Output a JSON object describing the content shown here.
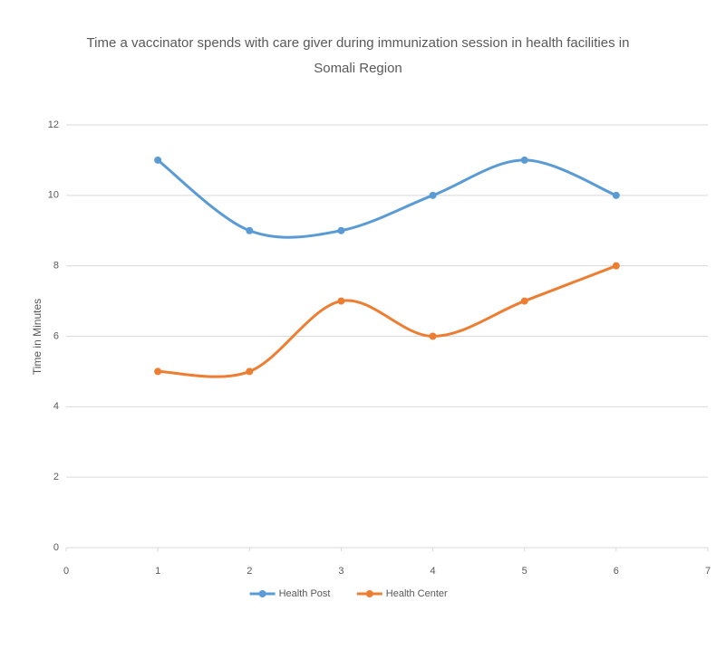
{
  "chart_data": {
    "type": "line",
    "title": "Time a vaccinator spends with care giver during immunization session  in health facilities in Somali Region",
    "y_label": "Time in Minutes",
    "x": [
      1,
      2,
      3,
      4,
      5,
      6
    ],
    "series": [
      {
        "name": "Health Post",
        "color": "#5b9bd5",
        "values": [
          11,
          9,
          9,
          10,
          11,
          10
        ]
      },
      {
        "name": "Health Center",
        "color": "#ed7d31",
        "values": [
          5,
          5,
          7,
          6,
          7,
          8
        ]
      }
    ],
    "xlim": [
      0,
      7
    ],
    "xticks": [
      0,
      1,
      2,
      3,
      4,
      5,
      6,
      7
    ],
    "ylim": [
      0,
      12
    ],
    "yticks": [
      0,
      2,
      4,
      6,
      8,
      10,
      12
    ],
    "grid": true,
    "smooth": true,
    "legend": "bottom"
  }
}
